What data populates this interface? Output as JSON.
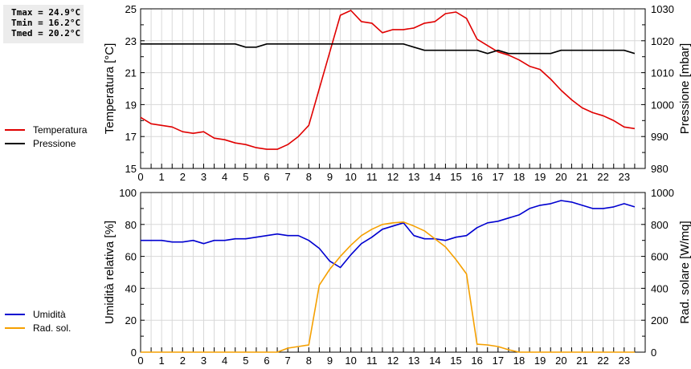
{
  "stats": {
    "tmax": "Tmax = 24.9°C",
    "tmin": "Tmin = 16.2°C",
    "tmed": "Tmed = 20.2°C"
  },
  "legend_top": [
    {
      "label": "Temperatura",
      "color": "#e00000"
    },
    {
      "label": "Pressione",
      "color": "#000000"
    }
  ],
  "legend_bottom": [
    {
      "label": "Umidità",
      "color": "#0000d0"
    },
    {
      "label": "Rad. sol.",
      "color": "#f5a000"
    }
  ],
  "chart_data": [
    {
      "type": "line",
      "title": "",
      "xlabel": "",
      "x_ticks": [
        "0",
        "1",
        "2",
        "3",
        "4",
        "5",
        "6",
        "7",
        "8",
        "9",
        "10",
        "11",
        "12",
        "13",
        "14",
        "15",
        "16",
        "17",
        "18",
        "19",
        "20",
        "21",
        "22",
        "23"
      ],
      "ylabel": "Temperatura [°C]",
      "ylabel_right": "Pressione [mbar]",
      "ylim": [
        15,
        25
      ],
      "ylim_right": [
        980,
        1030
      ],
      "y_ticks": [
        "15",
        "17",
        "19",
        "21",
        "23",
        "25"
      ],
      "y_ticks_right": [
        "980",
        "990",
        "1000",
        "1010",
        "1020",
        "1030"
      ],
      "grid": true,
      "legend_position": "left",
      "x": [
        0,
        0.5,
        1,
        1.5,
        2,
        2.5,
        3,
        3.5,
        4,
        4.5,
        5,
        5.5,
        6,
        6.5,
        7,
        7.5,
        8,
        8.5,
        9,
        9.5,
        10,
        10.5,
        11,
        11.5,
        12,
        12.5,
        13,
        13.5,
        14,
        14.5,
        15,
        15.5,
        16,
        16.5,
        17,
        17.5,
        18,
        18.5,
        19,
        19.5,
        20,
        20.5,
        21,
        21.5,
        22,
        22.5,
        23,
        23.5
      ],
      "series": [
        {
          "name": "Temperatura",
          "axis": "left",
          "color": "#e00000",
          "values": [
            18.2,
            17.8,
            17.7,
            17.6,
            17.3,
            17.2,
            17.3,
            16.9,
            16.8,
            16.6,
            16.5,
            16.3,
            16.2,
            16.2,
            16.5,
            17.0,
            17.7,
            20.0,
            22.3,
            24.6,
            24.9,
            24.2,
            24.1,
            23.5,
            23.7,
            23.7,
            23.8,
            24.1,
            24.2,
            24.7,
            24.8,
            24.4,
            23.1,
            22.7,
            22.3,
            22.1,
            21.8,
            21.4,
            21.2,
            20.6,
            19.9,
            19.3,
            18.8,
            18.5,
            18.3,
            18.0,
            17.6,
            17.5
          ]
        },
        {
          "name": "Pressione",
          "axis": "right",
          "color": "#000000",
          "values": [
            1019,
            1019,
            1019,
            1019,
            1019,
            1019,
            1019,
            1019,
            1019,
            1019,
            1018,
            1018,
            1019,
            1019,
            1019,
            1019,
            1019,
            1019,
            1019,
            1019,
            1019,
            1019,
            1019,
            1019,
            1019,
            1019,
            1018,
            1017,
            1017,
            1017,
            1017,
            1017,
            1017,
            1016,
            1017,
            1016,
            1016,
            1016,
            1016,
            1016,
            1017,
            1017,
            1017,
            1017,
            1017,
            1017,
            1017,
            1016
          ]
        }
      ]
    },
    {
      "type": "line",
      "title": "",
      "xlabel": "",
      "x_ticks": [
        "0",
        "1",
        "2",
        "3",
        "4",
        "5",
        "6",
        "7",
        "8",
        "9",
        "10",
        "11",
        "12",
        "13",
        "14",
        "15",
        "16",
        "17",
        "18",
        "19",
        "20",
        "21",
        "22",
        "23"
      ],
      "ylabel": "Umidità relativa [%]",
      "ylabel_right": "Rad. solare [W/mq]",
      "ylim": [
        0,
        100
      ],
      "ylim_right": [
        0,
        1000
      ],
      "y_ticks": [
        "0",
        "20",
        "40",
        "60",
        "80",
        "100"
      ],
      "y_ticks_right": [
        "0",
        "200",
        "400",
        "600",
        "800",
        "1000"
      ],
      "grid": true,
      "legend_position": "left",
      "x": [
        0,
        0.5,
        1,
        1.5,
        2,
        2.5,
        3,
        3.5,
        4,
        4.5,
        5,
        5.5,
        6,
        6.5,
        7,
        7.5,
        8,
        8.5,
        9,
        9.5,
        10,
        10.5,
        11,
        11.5,
        12,
        12.5,
        13,
        13.5,
        14,
        14.5,
        15,
        15.5,
        16,
        16.5,
        17,
        17.5,
        18,
        18.5,
        19,
        19.5,
        20,
        20.5,
        21,
        21.5,
        22,
        22.5,
        23,
        23.5
      ],
      "series": [
        {
          "name": "Umidità",
          "axis": "left",
          "color": "#0000d0",
          "values": [
            70,
            70,
            70,
            69,
            69,
            70,
            68,
            70,
            70,
            71,
            71,
            72,
            73,
            74,
            73,
            73,
            70,
            65,
            57,
            53,
            61,
            68,
            72,
            77,
            79,
            81,
            73,
            71,
            71,
            70,
            72,
            73,
            78,
            81,
            82,
            84,
            86,
            90,
            92,
            93,
            95,
            94,
            92,
            90,
            90,
            91,
            93,
            91
          ]
        },
        {
          "name": "Rad. sol.",
          "axis": "right",
          "color": "#f5a000",
          "values": [
            0,
            0,
            0,
            0,
            0,
            0,
            0,
            0,
            0,
            0,
            0,
            0,
            0,
            0,
            25,
            35,
            45,
            420,
            520,
            600,
            670,
            730,
            770,
            800,
            810,
            815,
            790,
            760,
            710,
            660,
            580,
            490,
            50,
            45,
            35,
            15,
            0,
            0,
            0,
            0,
            0,
            0,
            0,
            0,
            0,
            0,
            0,
            0
          ]
        }
      ]
    }
  ]
}
